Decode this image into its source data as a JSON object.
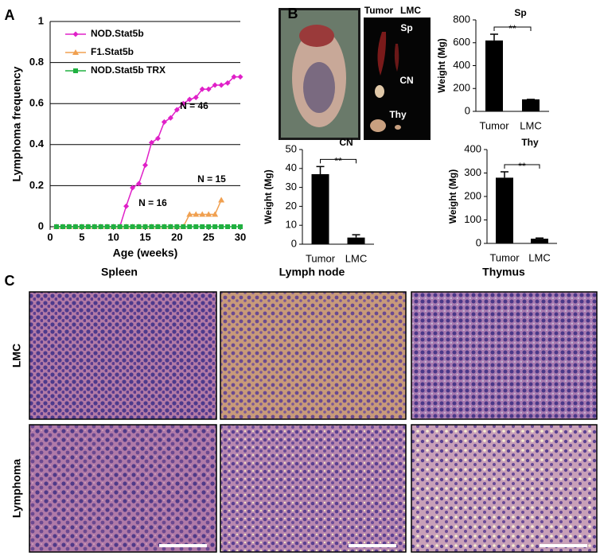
{
  "chart_data": [
    {
      "type": "line",
      "y_label": "Lymphoma frequency",
      "x_label": "Age (weeks)",
      "x": [
        1,
        2,
        3,
        4,
        5,
        6,
        7,
        8,
        9,
        10,
        11,
        12,
        13,
        14,
        15,
        16,
        17,
        18,
        19,
        20,
        21,
        22,
        23,
        24,
        25,
        26,
        27,
        28,
        29,
        30
      ],
      "xlim": [
        0,
        30
      ],
      "xticks": [
        0,
        5,
        10,
        15,
        20,
        25,
        30
      ],
      "ylim": [
        0,
        1
      ],
      "yticks": [
        0,
        0.2,
        0.4,
        0.6,
        0.8,
        1
      ],
      "grid": true,
      "series": [
        {
          "name": "NOD.Stat5b",
          "color": "#e020c8",
          "marker": "diamond",
          "values": [
            0,
            0,
            0,
            0,
            0,
            0,
            0,
            0,
            0,
            0,
            0,
            0.1,
            0.19,
            0.21,
            0.3,
            0.41,
            0.43,
            0.51,
            0.53,
            0.57,
            0.6,
            0.62,
            0.63,
            0.67,
            0.67,
            0.69,
            0.69,
            0.7,
            0.73,
            0.73
          ]
        },
        {
          "name": "F1.Stat5b",
          "color": "#f0a050",
          "marker": "triangle",
          "values": [
            0,
            0,
            0,
            0,
            0,
            0,
            0,
            0,
            0,
            0,
            0,
            0,
            0,
            0,
            0,
            0,
            0,
            0,
            0,
            0,
            0,
            0.06,
            0.06,
            0.06,
            0.06,
            0.06,
            0.13,
            null,
            null,
            null
          ]
        },
        {
          "name": "NOD.Stat5b TRX",
          "color": "#20b040",
          "marker": "square",
          "values": [
            0,
            0,
            0,
            0,
            0,
            0,
            0,
            0,
            0,
            0,
            0,
            0,
            0,
            0,
            0,
            0,
            0,
            0,
            0,
            0,
            0,
            0,
            0,
            0,
            0,
            0,
            0,
            0,
            0,
            0
          ]
        }
      ],
      "annotations": [
        "N = 46",
        "N = 15",
        "N = 16"
      ]
    },
    {
      "type": "bar",
      "title": "Sp",
      "y_label": "Weight (Mg)",
      "categories": [
        "Tumor",
        "LMC"
      ],
      "values": [
        620,
        105
      ],
      "errors": [
        55,
        0
      ],
      "color": "#000000",
      "ylim": [
        0,
        800
      ],
      "yticks": [
        0,
        200,
        400,
        600,
        800
      ],
      "significance": "**"
    },
    {
      "type": "bar",
      "title": "CN",
      "y_label": "Weight (Mg)",
      "categories": [
        "Tumor",
        "LMC"
      ],
      "values": [
        37,
        3.5
      ],
      "errors": [
        4,
        1.5
      ],
      "color": "#000000",
      "ylim": [
        0,
        50
      ],
      "yticks": [
        0,
        10,
        20,
        30,
        40,
        50
      ],
      "significance": "**"
    },
    {
      "type": "bar",
      "title": "Thy",
      "y_label": "Weight (Mg)",
      "categories": [
        "Tumor",
        "LMC"
      ],
      "values": [
        280,
        20
      ],
      "errors": [
        25,
        3
      ],
      "color": "#000000",
      "ylim": [
        0,
        400
      ],
      "yticks": [
        0,
        100,
        200,
        300,
        400
      ],
      "significance": "**"
    }
  ],
  "figure": {
    "panel_labels": [
      "A",
      "B",
      "C"
    ],
    "photo_labels": {
      "tumor": "Tumor",
      "lmc": "LMC",
      "sp": "Sp",
      "cn": "CN",
      "thy": "Thy"
    },
    "histology": {
      "columns": [
        "Spleen",
        "Lymph node",
        "Thymus"
      ],
      "rows": [
        "LMC",
        "Lymphoma"
      ]
    }
  }
}
